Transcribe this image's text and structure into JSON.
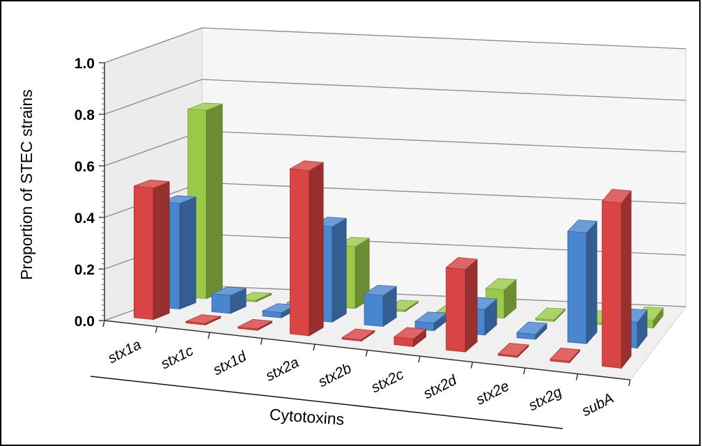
{
  "chart_data": {
    "type": "bar",
    "subtype": "3d-clustered-column",
    "title": "",
    "xlabel": "Cytotoxins",
    "ylabel": "Proportion of STEC strains",
    "ylim": [
      0,
      1.0
    ],
    "yticks": [
      "0.0",
      "0.2",
      "0.4",
      "0.6",
      "0.8",
      "1.0"
    ],
    "grid": true,
    "categories": [
      "stx1a",
      "stx1c",
      "stx1d",
      "stx2a",
      "stx2b",
      "stx2c",
      "stx2d",
      "stx2e",
      "stx2g",
      "subA"
    ],
    "series": [
      {
        "color": "#d94444",
        "values": [
          0.51,
          0.0,
          0.0,
          0.64,
          0.0,
          0.03,
          0.32,
          0.0,
          0.0,
          0.64
        ]
      },
      {
        "color": "#4a86cf",
        "values": [
          0.41,
          0.07,
          0.02,
          0.37,
          0.12,
          0.03,
          0.1,
          0.02,
          0.43,
          0.1
        ]
      },
      {
        "color": "#9bc94a",
        "values": [
          0.73,
          0.0,
          0.0,
          0.24,
          0.0,
          0.0,
          0.11,
          0.0,
          0.0,
          0.03
        ]
      }
    ]
  }
}
